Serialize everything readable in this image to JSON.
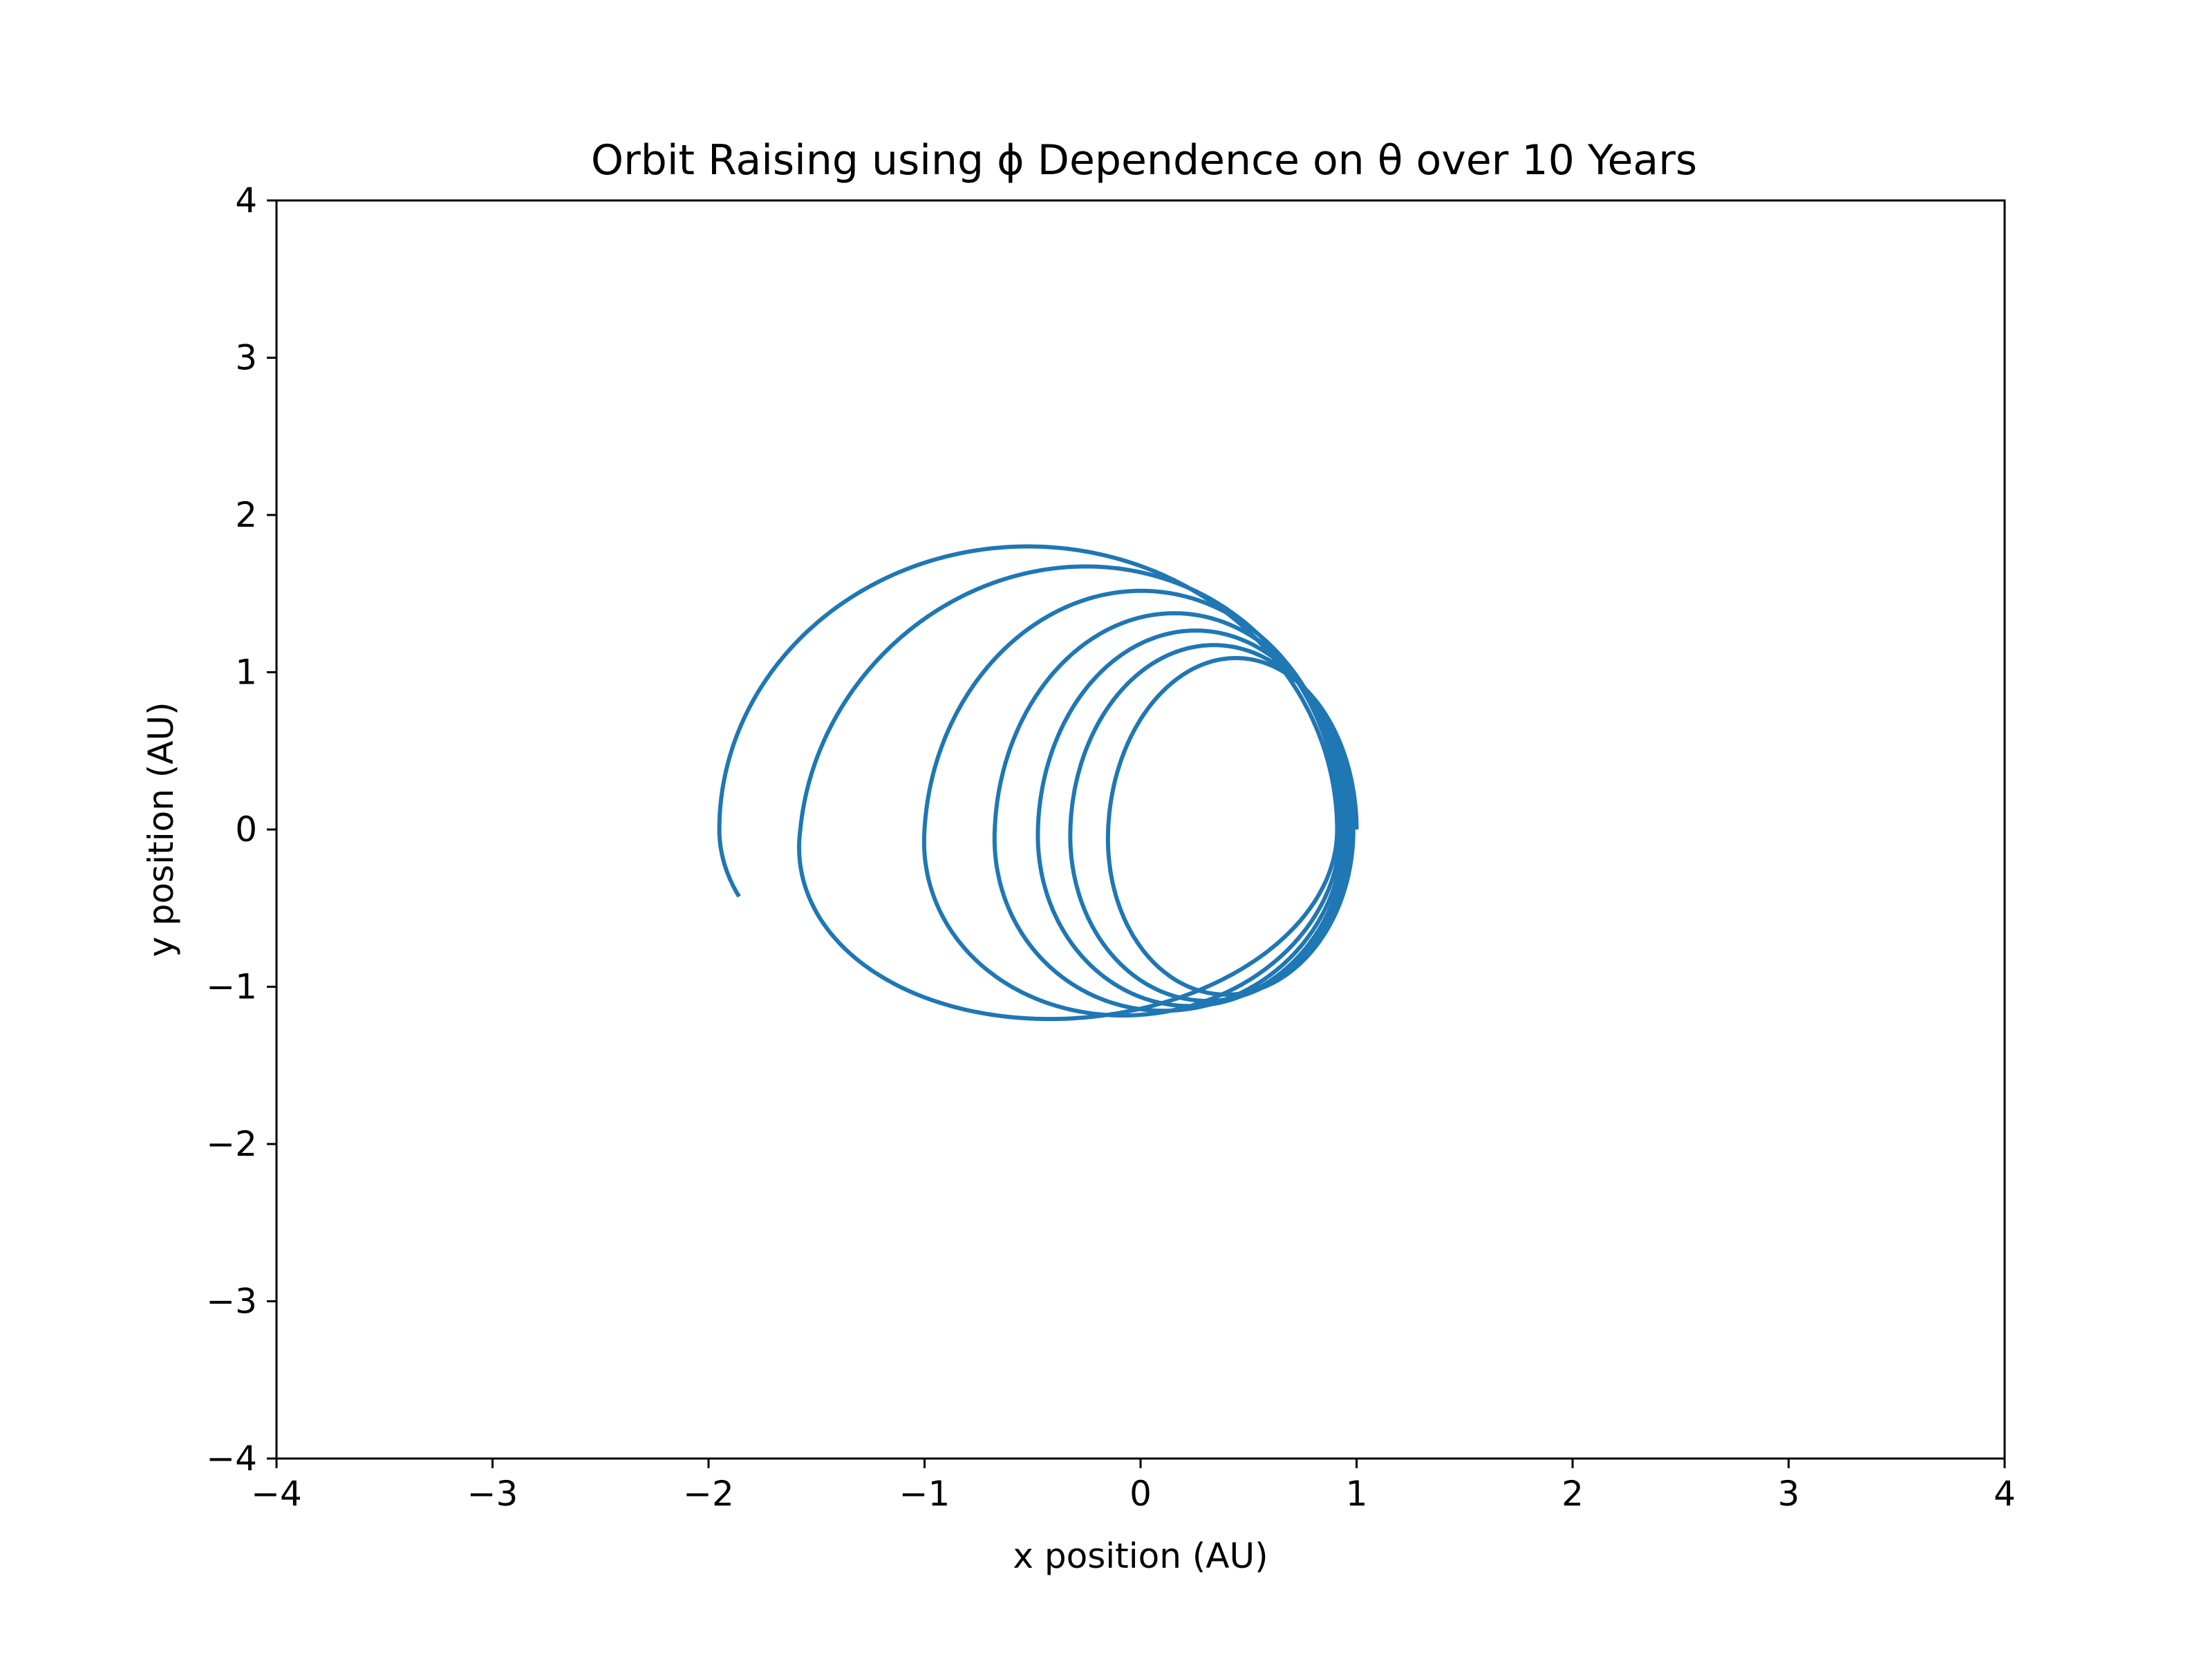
{
  "chart_data": {
    "type": "line",
    "title": "Orbit Raising using ϕ Dependence on θ over 10 Years",
    "xlabel": "x position (AU)",
    "ylabel": "y position (AU)",
    "xlim": [
      -4,
      4
    ],
    "ylim": [
      -4,
      4
    ],
    "xticks": [
      -4,
      -3,
      -2,
      -1,
      0,
      1,
      2,
      3,
      4
    ],
    "yticks": [
      -4,
      -3,
      -2,
      -1,
      0,
      1,
      2,
      3,
      4
    ],
    "xtick_labels": [
      "−4",
      "−3",
      "−2",
      "−1",
      "0",
      "1",
      "2",
      "3",
      "4"
    ],
    "ytick_labels": [
      "−4",
      "−3",
      "−2",
      "−1",
      "0",
      "1",
      "2",
      "3",
      "4"
    ],
    "grid": false,
    "line_color": "#1f77b4",
    "series": [
      {
        "description_hidden": false,
        "turns": 7,
        "start": [
          1.0,
          0.0
        ],
        "end": [
          -1.99,
          -0.55
        ],
        "aphelion_x": [
          -0.05,
          -0.25,
          -0.4,
          -0.55,
          -0.8,
          -1.2,
          -1.95
        ],
        "max_y": [
          1.07,
          1.15,
          1.24,
          1.34,
          1.48,
          1.63,
          1.8
        ],
        "min_y": [
          -1.02,
          -1.06,
          -1.1,
          -1.13,
          -1.16,
          -1.19,
          -1.21
        ]
      }
    ]
  }
}
